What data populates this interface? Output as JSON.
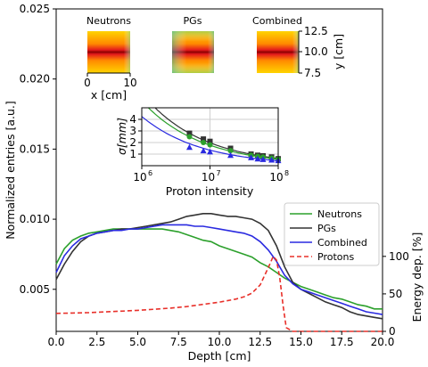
{
  "chart_data": {
    "type": "line",
    "xlabel": "Depth [cm]",
    "ylabel": "Normalized entries [a.u.]",
    "y2label": "Energy dep. [%]",
    "xlim": [
      0,
      20
    ],
    "ylim": [
      0.002,
      0.025
    ],
    "y2lim": [
      0,
      430
    ],
    "xticks": [
      "0.0",
      "2.5",
      "5.0",
      "7.5",
      "10.0",
      "12.5",
      "15.0",
      "17.5",
      "20.0"
    ],
    "yticks": [
      "0.005",
      "0.010",
      "0.015",
      "0.020",
      "0.025"
    ],
    "y2ticks": [
      "0",
      "50",
      "100"
    ],
    "legend_position": "center-right",
    "series": [
      {
        "name": "Neutrons",
        "color": "#2ca02c",
        "style": "solid",
        "x": [
          0,
          0.5,
          1,
          1.5,
          2,
          2.5,
          3,
          3.5,
          4,
          4.5,
          5,
          5.5,
          6,
          6.5,
          7,
          7.5,
          8,
          8.5,
          9,
          9.5,
          10,
          10.5,
          11,
          11.5,
          12,
          12.5,
          13,
          13.5,
          14,
          14.5,
          15,
          15.5,
          16,
          16.5,
          17,
          17.5,
          18,
          18.5,
          19,
          19.5,
          20
        ],
        "y": [
          0.0068,
          0.0079,
          0.0085,
          0.0088,
          0.009,
          0.0091,
          0.0092,
          0.0093,
          0.0093,
          0.0093,
          0.0093,
          0.0093,
          0.0093,
          0.0093,
          0.0092,
          0.0091,
          0.0089,
          0.0087,
          0.0085,
          0.0084,
          0.0081,
          0.0079,
          0.0077,
          0.0075,
          0.0073,
          0.0069,
          0.0066,
          0.0062,
          0.0058,
          0.0055,
          0.0052,
          0.005,
          0.0048,
          0.0046,
          0.0044,
          0.0043,
          0.0041,
          0.0039,
          0.0038,
          0.0036,
          0.0036
        ]
      },
      {
        "name": "PGs",
        "color": "#333333",
        "style": "solid",
        "x": [
          0,
          0.5,
          1,
          1.5,
          2,
          2.5,
          3,
          3.5,
          4,
          4.5,
          5,
          5.5,
          6,
          6.5,
          7,
          7.5,
          8,
          8.5,
          9,
          9.5,
          10,
          10.5,
          11,
          11.5,
          12,
          12.5,
          13,
          13.5,
          14,
          14.5,
          15,
          15.5,
          16,
          16.5,
          17,
          17.5,
          18,
          18.5,
          19,
          19.5,
          20
        ],
        "y": [
          0.0057,
          0.0068,
          0.0077,
          0.0084,
          0.0088,
          0.009,
          0.0091,
          0.0092,
          0.0093,
          0.0093,
          0.0094,
          0.0095,
          0.0096,
          0.0097,
          0.0098,
          0.01,
          0.0102,
          0.0103,
          0.0104,
          0.0104,
          0.0103,
          0.0102,
          0.0102,
          0.0101,
          0.01,
          0.0097,
          0.0092,
          0.0081,
          0.0066,
          0.0055,
          0.005,
          0.0047,
          0.0044,
          0.0041,
          0.0039,
          0.0037,
          0.0034,
          0.0032,
          0.0031,
          0.003,
          0.0029
        ]
      },
      {
        "name": "Combined",
        "color": "#2a2ae0",
        "style": "solid",
        "x": [
          0,
          0.5,
          1,
          1.5,
          2,
          2.5,
          3,
          3.5,
          4,
          4.5,
          5,
          5.5,
          6,
          6.5,
          7,
          7.5,
          8,
          8.5,
          9,
          9.5,
          10,
          10.5,
          11,
          11.5,
          12,
          12.5,
          13,
          13.5,
          14,
          14.5,
          15,
          15.5,
          16,
          16.5,
          17,
          17.5,
          18,
          18.5,
          19,
          19.5,
          20
        ],
        "y": [
          0.0062,
          0.0074,
          0.0081,
          0.0086,
          0.0088,
          0.009,
          0.0091,
          0.0092,
          0.0092,
          0.0093,
          0.0093,
          0.0094,
          0.0095,
          0.0096,
          0.0096,
          0.0096,
          0.0096,
          0.0095,
          0.0095,
          0.0094,
          0.0093,
          0.0092,
          0.0091,
          0.009,
          0.0088,
          0.0084,
          0.0078,
          0.007,
          0.006,
          0.0054,
          0.005,
          0.0048,
          0.0046,
          0.0044,
          0.0042,
          0.004,
          0.0038,
          0.0036,
          0.0034,
          0.0033,
          0.0032
        ]
      },
      {
        "name": "Protons",
        "color": "#e8302a",
        "style": "dashed",
        "axis": "y2",
        "x": [
          0,
          1,
          2,
          3,
          4,
          5,
          6,
          7,
          8,
          9,
          10,
          11,
          11.5,
          12,
          12.5,
          13,
          13.3,
          13.5,
          13.7,
          13.9,
          14.1,
          14.5,
          15,
          16,
          17,
          18,
          19,
          20
        ],
        "y": [
          24,
          24.5,
          25,
          26,
          27,
          28,
          29.5,
          31,
          33,
          36,
          39,
          43,
          46,
          51,
          62,
          85,
          100,
          95,
          72,
          35,
          5,
          0,
          0,
          0,
          0,
          0,
          0,
          0
        ]
      }
    ],
    "inset": {
      "type": "scatter",
      "xlabel": "Proton intensity",
      "ylabel": "σ[mm]",
      "xscale": "log",
      "xlim": [
        1000000,
        100000000
      ],
      "ylim": [
        0,
        5
      ],
      "xticks": [
        "10^6",
        "10^7",
        "10^8"
      ],
      "yticks": [
        "1",
        "2",
        "3",
        "4"
      ],
      "series": [
        {
          "color": "#333333",
          "marker": "square",
          "x": [
            5000000,
            8000000,
            10000000,
            20000000,
            40000000,
            50000000,
            60000000,
            80000000,
            100000000
          ],
          "y": [
            2.8,
            2.3,
            2.1,
            1.5,
            1.0,
            0.9,
            0.85,
            0.75,
            0.6
          ],
          "fit_a": 2.8,
          "fit_x0": 5000000
        },
        {
          "color": "#2ca02c",
          "marker": "circle",
          "x": [
            5000000,
            8000000,
            10000000,
            20000000,
            40000000,
            50000000,
            60000000,
            80000000,
            100000000
          ],
          "y": [
            2.5,
            2.0,
            1.8,
            1.3,
            0.9,
            0.8,
            0.75,
            0.65,
            0.55
          ],
          "fit_a": 2.5,
          "fit_x0": 5000000
        },
        {
          "color": "#2a2ae0",
          "marker": "triangle",
          "x": [
            5000000,
            8000000,
            10000000,
            20000000,
            40000000,
            50000000,
            60000000,
            80000000,
            100000000
          ],
          "y": [
            1.6,
            1.3,
            1.2,
            0.9,
            0.7,
            0.6,
            0.55,
            0.5,
            0.45
          ],
          "fit_a": 1.9,
          "fit_x0": 5000000
        }
      ]
    },
    "heatmaps": {
      "panels": [
        "Neutrons",
        "PGs",
        "Combined"
      ],
      "x_axis_label": "x [cm]",
      "x_ticks": [
        "0",
        "10"
      ],
      "y_axis_label": "y [cm]",
      "y_ticks": [
        "12.5",
        "10.0",
        "7.5"
      ]
    }
  }
}
